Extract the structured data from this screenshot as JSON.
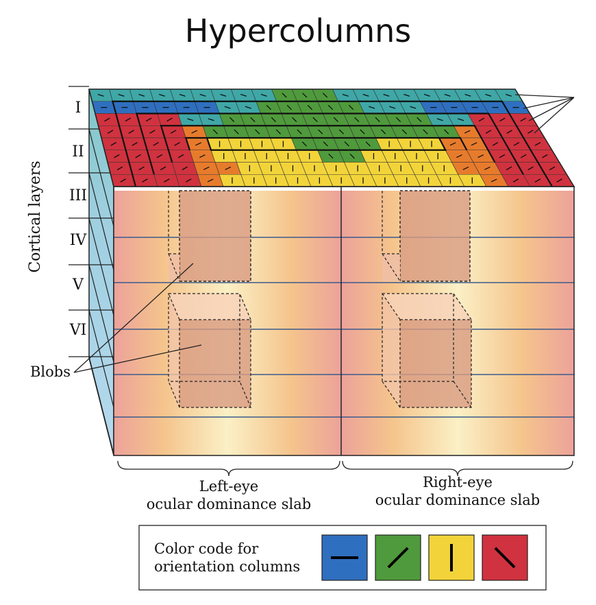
{
  "title": "Hypercolumns",
  "cortical_layers_label": "Cortical layers",
  "layers": [
    "I",
    "II",
    "III",
    "IV",
    "V",
    "VI"
  ],
  "blobs_label": "Blobs",
  "slabs": {
    "left": {
      "line1": "Left-eye",
      "line2": "ocular dominance slab"
    },
    "right": {
      "line1": "Right-eye",
      "line2": "ocular dominance slab"
    }
  },
  "legend": {
    "line1": "Color code for",
    "line2": "orientation columns",
    "swatches": [
      {
        "name": "horizontal",
        "color": "#2f6fbf",
        "angle": 0
      },
      {
        "name": "oblique-right",
        "color": "#4f9a3c",
        "angle": -45
      },
      {
        "name": "vertical",
        "color": "#f2d43a",
        "angle": 90
      },
      {
        "name": "oblique-left",
        "color": "#d0323f",
        "angle": 45
      }
    ]
  },
  "colors": {
    "blue": "#2f6fbf",
    "teal": "#3fa7a6",
    "green": "#4f9a3c",
    "yellow": "#f2d43a",
    "orange": "#e77b2c",
    "red": "#d0323f",
    "slab_edge": "#e9a89a",
    "slab_center": "#fbf0c4",
    "blob": "#d89b82"
  }
}
